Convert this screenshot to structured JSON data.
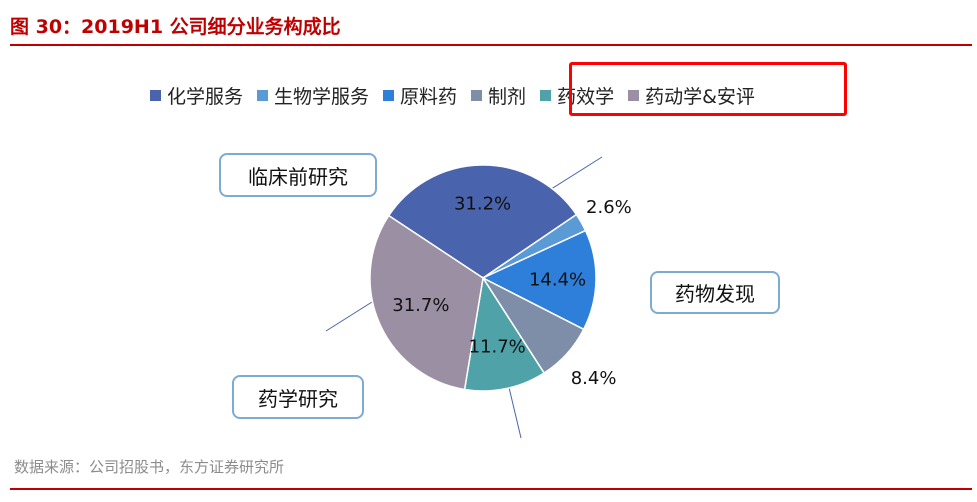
{
  "figure": {
    "title": "图 30：2019H1 公司细分业务构成比",
    "source": "数据来源：公司招股书，东方证券研究所"
  },
  "chart_data": {
    "type": "pie",
    "title": "",
    "legend_position": "top",
    "slices": [
      {
        "name": "化学服务",
        "value": 31.2,
        "label": "31.2%",
        "color": "#4a63ad"
      },
      {
        "name": "生物学服务",
        "value": 2.6,
        "label": "2.6%",
        "color": "#5b9bd5"
      },
      {
        "name": "原料药",
        "value": 14.4,
        "label": "14.4%",
        "color": "#2e7fd9"
      },
      {
        "name": "制剂",
        "value": 8.4,
        "label": "8.4%",
        "color": "#7f8ea8"
      },
      {
        "name": "药效学",
        "value": 11.7,
        "label": "11.7%",
        "color": "#4fa3a8"
      },
      {
        "name": "药动学&安评",
        "value": 31.7,
        "label": "31.7%",
        "color": "#9b8fa3"
      }
    ]
  },
  "callouts": [
    {
      "text": "临床前研究"
    },
    {
      "text": "药物发现"
    },
    {
      "text": "药学研究"
    }
  ]
}
